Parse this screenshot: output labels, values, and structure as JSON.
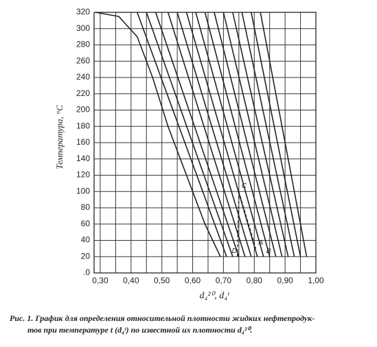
{
  "chart_data": {
    "type": "line",
    "y_label": "Температура, °C",
    "x_label": "d₄²⁰, d₄ᵗ",
    "xlim": [
      0.28,
      1.0
    ],
    "ylim": [
      0,
      320
    ],
    "xticks": [
      {
        "value": 0.3,
        "label": "0,30"
      },
      {
        "value": 0.4,
        "label": "0,40"
      },
      {
        "value": 0.5,
        "label": "0,50"
      },
      {
        "value": 0.6,
        "label": "0,60"
      },
      {
        "value": 0.7,
        "label": "0,70"
      },
      {
        "value": 0.8,
        "label": "0,80"
      },
      {
        "value": 0.9,
        "label": "0,90"
      },
      {
        "value": 1.0,
        "label": "1,00"
      }
    ],
    "xminor": [
      0.35,
      0.45,
      0.55,
      0.65,
      0.75,
      0.85,
      0.95
    ],
    "yticks": [
      {
        "value": 0,
        "label": ".0"
      },
      20,
      40,
      60,
      80,
      100,
      120,
      140,
      160,
      180,
      200,
      220,
      240,
      260,
      280,
      300,
      320
    ],
    "grid": true,
    "color": "#222222",
    "series": [
      {
        "x": [
          0.285,
          0.36,
          0.42,
          0.47,
          0.52,
          0.58,
          0.64,
          0.69
        ],
        "values": [
          320,
          315,
          290,
          240,
          180,
          120,
          60,
          20
        ]
      },
      {
        "x": [
          0.42,
          0.71
        ],
        "values": [
          320,
          20
        ]
      },
      {
        "x": [
          0.45,
          0.73
        ],
        "values": [
          320,
          20
        ]
      },
      {
        "x": [
          0.48,
          0.75
        ],
        "values": [
          320,
          20
        ]
      },
      {
        "x": [
          0.52,
          0.77
        ],
        "values": [
          320,
          20
        ]
      },
      {
        "x": [
          0.55,
          0.79
        ],
        "values": [
          320,
          20
        ]
      },
      {
        "x": [
          0.58,
          0.81
        ],
        "values": [
          320,
          20
        ]
      },
      {
        "x": [
          0.61,
          0.83
        ],
        "values": [
          320,
          20
        ]
      },
      {
        "x": [
          0.64,
          0.85
        ],
        "values": [
          320,
          20
        ]
      },
      {
        "x": [
          0.67,
          0.87
        ],
        "values": [
          320,
          20
        ]
      },
      {
        "x": [
          0.7,
          0.89
        ],
        "values": [
          320,
          20
        ]
      },
      {
        "x": [
          0.73,
          0.91
        ],
        "values": [
          320,
          20
        ]
      },
      {
        "x": [
          0.76,
          0.93
        ],
        "values": [
          320,
          20
        ]
      },
      {
        "x": [
          0.79,
          0.95
        ],
        "values": [
          320,
          20
        ]
      },
      {
        "x": [
          0.82,
          0.97
        ],
        "values": [
          320,
          20
        ]
      }
    ],
    "annotations": [
      {
        "text": "C",
        "x": 0.75,
        "y": 100
      },
      {
        "text": "A",
        "x": 0.805,
        "y": 30
      },
      {
        "text": "B",
        "x": 0.83,
        "y": 20
      },
      {
        "text": "D",
        "x": 0.745,
        "y": 20
      }
    ],
    "caption": [
      "Рис. 1. График для определения относительной плотности жидких нефтепродук-",
      "тов при температуре t (d₄ᵗ) по известной их плотности d₄²⁰."
    ]
  }
}
